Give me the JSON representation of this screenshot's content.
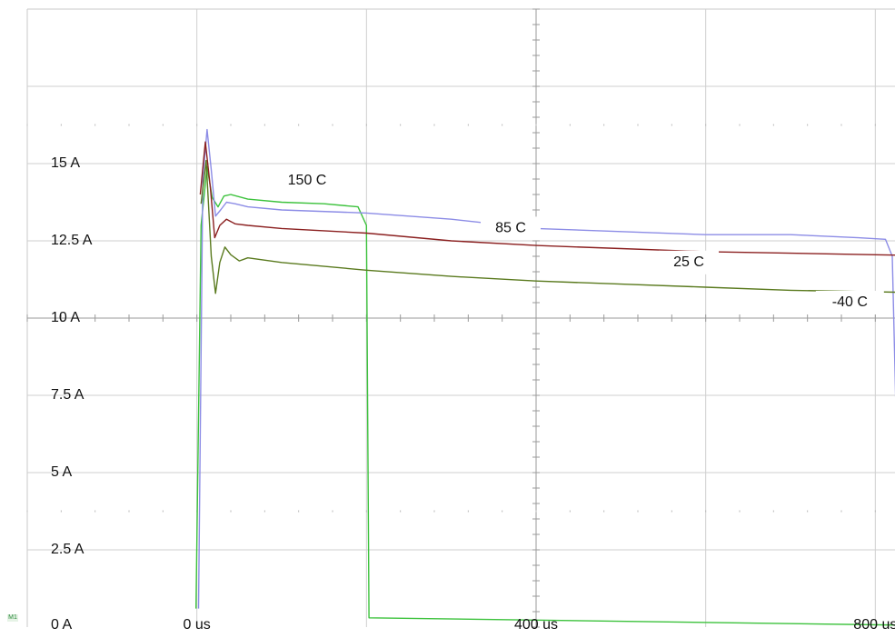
{
  "chart_data": {
    "type": "line",
    "title": "",
    "xlabel": "",
    "ylabel": "",
    "xlim": [
      -200,
      1000
    ],
    "ylim": [
      0,
      20
    ],
    "x_divisions": 6,
    "y_divisions": 8,
    "grid": true,
    "x_ticks": [
      {
        "value": 0,
        "label": "0 us"
      },
      {
        "value": 400,
        "label": "400 us"
      },
      {
        "value": 800,
        "label": "800 us"
      }
    ],
    "y_ticks": [
      {
        "value": 0,
        "label": "0 A"
      },
      {
        "value": 2.5,
        "label": "2.5 A"
      },
      {
        "value": 5,
        "label": "5 A"
      },
      {
        "value": 7.5,
        "label": "7.5 A"
      },
      {
        "value": 10,
        "label": "10 A"
      },
      {
        "value": 12.5,
        "label": "12.5 A"
      },
      {
        "value": 15,
        "label": "15 A"
      }
    ],
    "channel_marker": "M1",
    "series": [
      {
        "name": "150 C",
        "color": "#3cc23c",
        "label_at": [
          130,
          14.45
        ],
        "points": [
          [
            -1,
            0.6
          ],
          [
            5,
            13.0
          ],
          [
            12,
            14.9
          ],
          [
            18,
            13.9
          ],
          [
            25,
            13.6
          ],
          [
            32,
            13.95
          ],
          [
            40,
            14.0
          ],
          [
            60,
            13.85
          ],
          [
            100,
            13.75
          ],
          [
            150,
            13.7
          ],
          [
            190,
            13.6
          ],
          [
            200,
            13.0
          ],
          [
            203,
            0.3
          ],
          [
            1000,
            0.0
          ]
        ]
      },
      {
        "name": "85 C",
        "color": "#8c8ce6",
        "label_at": [
          370,
          12.9
        ],
        "points": [
          [
            2,
            0.6
          ],
          [
            7,
            14.5
          ],
          [
            12,
            16.1
          ],
          [
            17,
            14.8
          ],
          [
            22,
            13.3
          ],
          [
            28,
            13.5
          ],
          [
            35,
            13.75
          ],
          [
            45,
            13.7
          ],
          [
            60,
            13.6
          ],
          [
            100,
            13.5
          ],
          [
            200,
            13.4
          ],
          [
            300,
            13.2
          ],
          [
            400,
            12.9
          ],
          [
            500,
            12.8
          ],
          [
            600,
            12.7
          ],
          [
            700,
            12.7
          ],
          [
            780,
            12.6
          ],
          [
            812,
            12.55
          ],
          [
            820,
            12.0
          ],
          [
            830,
            0.5
          ],
          [
            1000,
            0.3
          ]
        ]
      },
      {
        "name": "25 C",
        "color": "#8b2020",
        "label_at": [
          580,
          11.8
        ],
        "points": [
          [
            4,
            14.0
          ],
          [
            10,
            15.7
          ],
          [
            16,
            14.2
          ],
          [
            21,
            12.6
          ],
          [
            27,
            13.0
          ],
          [
            35,
            13.2
          ],
          [
            45,
            13.05
          ],
          [
            60,
            13.0
          ],
          [
            100,
            12.9
          ],
          [
            200,
            12.75
          ],
          [
            300,
            12.5
          ],
          [
            400,
            12.35
          ],
          [
            500,
            12.25
          ],
          [
            600,
            12.15
          ],
          [
            700,
            12.1
          ],
          [
            800,
            12.05
          ],
          [
            900,
            12.0
          ],
          [
            1000,
            11.95
          ]
        ]
      },
      {
        "name": "-40 C",
        "color": "#5a7a1e",
        "label_at": [
          770,
          10.5
        ],
        "points": [
          [
            5,
            13.7
          ],
          [
            11,
            15.1
          ],
          [
            17,
            12.0
          ],
          [
            22,
            10.8
          ],
          [
            27,
            11.8
          ],
          [
            33,
            12.3
          ],
          [
            40,
            12.05
          ],
          [
            50,
            11.85
          ],
          [
            60,
            11.95
          ],
          [
            100,
            11.8
          ],
          [
            200,
            11.55
          ],
          [
            300,
            11.35
          ],
          [
            400,
            11.2
          ],
          [
            500,
            11.1
          ],
          [
            600,
            11.0
          ],
          [
            700,
            10.9
          ],
          [
            800,
            10.85
          ],
          [
            900,
            10.8
          ],
          [
            1000,
            10.75
          ]
        ]
      }
    ]
  }
}
